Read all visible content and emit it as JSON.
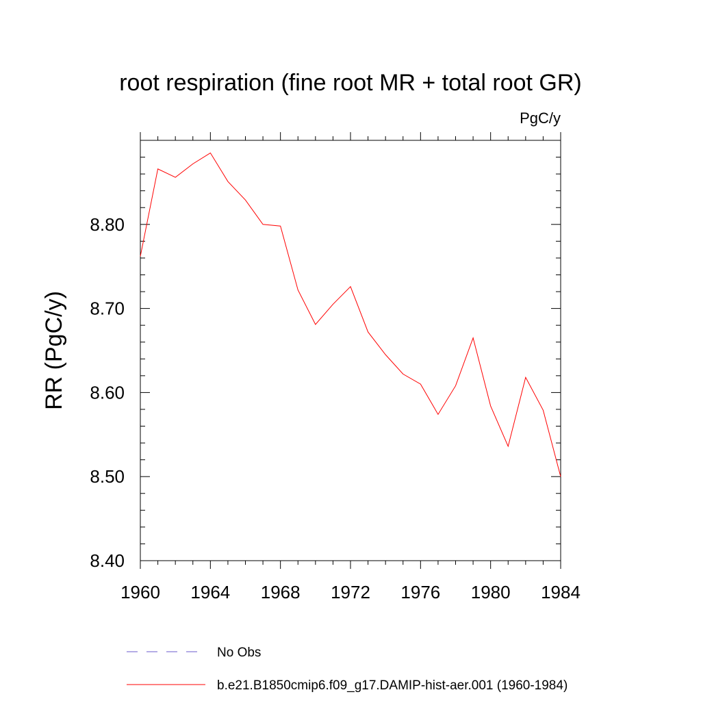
{
  "chart_data": {
    "type": "line",
    "title": "root respiration (fine root MR + total root GR)",
    "units_label": "PgC/y",
    "ylabel": "RR  (PgC/y)",
    "xlabel": "",
    "xlim": [
      1960,
      1984
    ],
    "ylim": [
      8.4,
      8.9
    ],
    "x_ticks": [
      1960,
      1964,
      1968,
      1972,
      1976,
      1980,
      1984
    ],
    "x_tick_labels": [
      "1960",
      "1964",
      "1968",
      "1972",
      "1976",
      "1980",
      "1984"
    ],
    "y_ticks": [
      8.4,
      8.5,
      8.6,
      8.7,
      8.8
    ],
    "y_tick_labels": [
      "8.40",
      "8.50",
      "8.60",
      "8.70",
      "8.80"
    ],
    "grid": false,
    "legend_position": "bottom",
    "series": [
      {
        "name": "b.e21.B1850cmip6.f09_g17.DAMIP-hist-aer.001 (1960-1984)",
        "color": "#ff0000",
        "style": "solid",
        "x": [
          1960,
          1961,
          1962,
          1963,
          1964,
          1965,
          1966,
          1967,
          1968,
          1969,
          1970,
          1971,
          1972,
          1973,
          1974,
          1975,
          1976,
          1977,
          1978,
          1979,
          1980,
          1981,
          1982,
          1983,
          1984
        ],
        "y": [
          8.762,
          8.866,
          8.856,
          8.872,
          8.885,
          8.851,
          8.829,
          8.8,
          8.798,
          8.722,
          8.681,
          8.705,
          8.726,
          8.672,
          8.645,
          8.622,
          8.61,
          8.574,
          8.608,
          8.665,
          8.584,
          8.536,
          8.618,
          8.579,
          8.5
        ]
      }
    ],
    "legend": [
      {
        "label": "No Obs",
        "color": "#6a5acd",
        "style": "dashed"
      },
      {
        "label": "b.e21.B1850cmip6.f09_g17.DAMIP-hist-aer.001 (1960-1984)",
        "color": "#ff0000",
        "style": "solid"
      }
    ]
  }
}
